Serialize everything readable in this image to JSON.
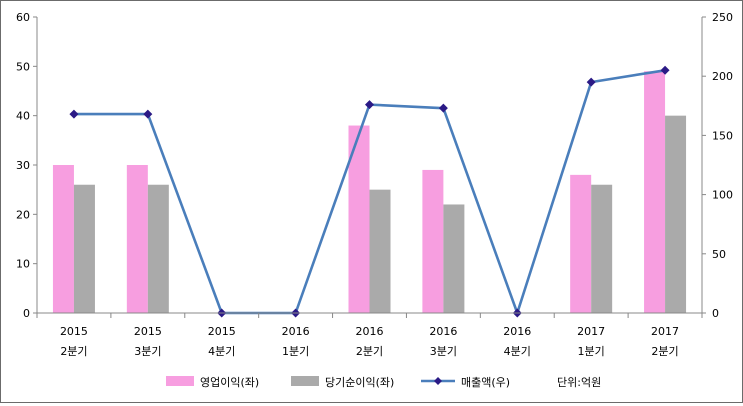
{
  "chart_data": {
    "type": "bar+line",
    "categories": [
      [
        "2015",
        "2분기"
      ],
      [
        "2015",
        "3분기"
      ],
      [
        "2015",
        "4분기"
      ],
      [
        "2016",
        "1분기"
      ],
      [
        "2016",
        "2분기"
      ],
      [
        "2016",
        "3분기"
      ],
      [
        "2016",
        "4분기"
      ],
      [
        "2017",
        "1분기"
      ],
      [
        "2017",
        "2분기"
      ]
    ],
    "series": [
      {
        "name": "영업이익(좌)",
        "kind": "bar",
        "axis": "left",
        "color": "#f79ee0",
        "values": [
          30,
          30,
          0,
          0,
          38,
          29,
          0,
          28,
          49
        ]
      },
      {
        "name": "당기순이익(좌)",
        "kind": "bar",
        "axis": "left",
        "color": "#aaaaaa",
        "values": [
          26,
          26,
          0,
          0,
          25,
          22,
          0,
          26,
          40
        ]
      },
      {
        "name": "매출액(우)",
        "kind": "line",
        "axis": "right",
        "color": "#4a7ebb",
        "marker_color": "#2b1a86",
        "values": [
          168,
          168,
          0,
          0,
          176,
          173,
          0,
          195,
          205
        ]
      }
    ],
    "y_left": {
      "ylim": [
        0,
        60
      ],
      "ticks": [
        "0",
        "10",
        "20",
        "30",
        "40",
        "50",
        "60"
      ]
    },
    "y_right": {
      "ylim": [
        0,
        250
      ],
      "ticks": [
        "0",
        "50",
        "100",
        "150",
        "200",
        "250"
      ]
    },
    "unit_note": "단위:억원",
    "grid": false,
    "legend_position": "bottom"
  }
}
